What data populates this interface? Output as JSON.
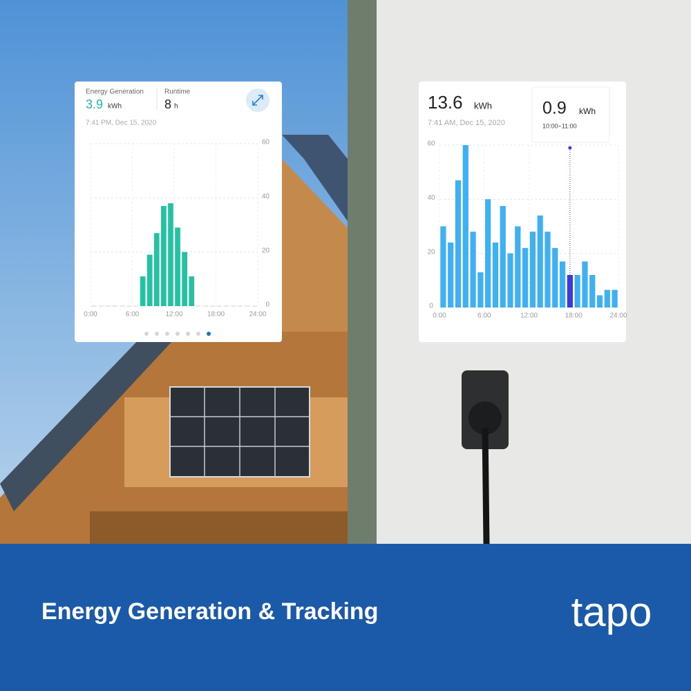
{
  "chart_data": [
    {
      "type": "bar",
      "color": "#22c3a3",
      "summary": [
        {
          "label": "Energy Generation",
          "value": 3.9,
          "unit": "kWh"
        },
        {
          "label": "Runtime",
          "value": 8,
          "unit": "h"
        }
      ],
      "timestamp": "7:41 PM, Dec 15, 2020",
      "x": [
        0,
        1,
        2,
        3,
        4,
        5,
        6,
        7,
        8,
        9,
        10,
        11,
        12,
        13,
        14,
        15,
        16,
        17,
        18,
        19,
        20,
        21,
        22,
        23
      ],
      "values": [
        0,
        0,
        0,
        0,
        0,
        0,
        0,
        11,
        19,
        27,
        37,
        38,
        29,
        20,
        11,
        0,
        0,
        0,
        0,
        0,
        0,
        0,
        0,
        0
      ],
      "xlim": [
        0,
        24
      ],
      "xticks": [
        {
          "value": 0,
          "label": "0:00"
        },
        {
          "value": 6,
          "label": "6:00"
        },
        {
          "value": 12,
          "label": "12:00"
        },
        {
          "value": 18,
          "label": "18:00"
        },
        {
          "value": 24,
          "label": "24:00"
        }
      ],
      "ylim": [
        0,
        60
      ],
      "yticks": [
        0,
        20,
        40,
        60
      ],
      "grid": true
    },
    {
      "type": "bar",
      "color": "#3fb0f2",
      "highlight_color": "#3b3bd9",
      "highlight": 17,
      "total": {
        "value": 13.6,
        "unit": "kWh"
      },
      "timestamp": "7:41 AM, Dec 15, 2020",
      "tooltip": {
        "value": 0.9,
        "unit": "kWh",
        "range": "10:00~11:00"
      },
      "x": [
        0,
        1,
        2,
        3,
        4,
        5,
        6,
        7,
        8,
        9,
        10,
        11,
        12,
        13,
        14,
        15,
        16,
        17,
        18,
        19,
        20,
        21,
        22,
        23
      ],
      "values": [
        30,
        24,
        47,
        60,
        28,
        13,
        40,
        24,
        37.5,
        20,
        30,
        22,
        28,
        34,
        28,
        22,
        17,
        12,
        12,
        17,
        12,
        4.5,
        6.5,
        6.5
      ],
      "xlim": [
        0,
        24
      ],
      "xticks": [
        {
          "value": 0,
          "label": "0:00"
        },
        {
          "value": 6,
          "label": "6:00"
        },
        {
          "value": 12,
          "label": "12:00"
        },
        {
          "value": 18,
          "label": "18:00"
        },
        {
          "value": 24,
          "label": "24:00"
        }
      ],
      "ylim": [
        0,
        60
      ],
      "yticks": [
        0,
        20,
        40,
        60
      ],
      "grid": true
    }
  ],
  "banner": {
    "title": "Energy Generation & Tracking",
    "logo": "tapo"
  }
}
